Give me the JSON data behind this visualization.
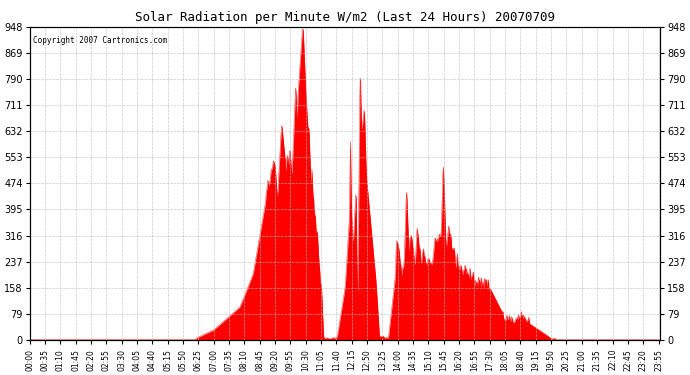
{
  "title": "Solar Radiation per Minute W/m2 (Last 24 Hours) 20070709",
  "copyright_text": "Copyright 2007 Cartronics.com",
  "bg_color": "#ffffff",
  "plot_bg_color": "#ffffff",
  "fill_color": "#ff0000",
  "line_color": "#ff0000",
  "dashed_line_color": "#ff0000",
  "grid_color": "#bbbbbb",
  "ymin": 0.0,
  "ymax": 948.0,
  "yticks": [
    0.0,
    79.0,
    158.0,
    237.0,
    316.0,
    395.0,
    474.0,
    553.0,
    632.0,
    711.0,
    790.0,
    869.0,
    948.0
  ],
  "n_points": 1440
}
